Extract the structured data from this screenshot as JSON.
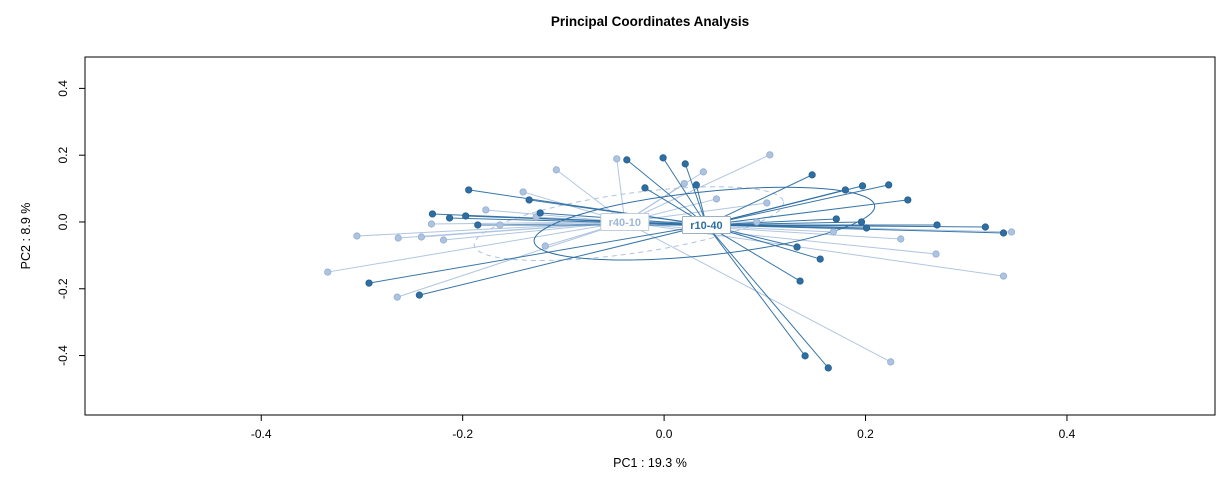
{
  "title": "Principal Coordinates Analysis",
  "chart_data": {
    "type": "scatter",
    "title": "Principal Coordinates Analysis",
    "xlabel": "PC1 :  19.3 %",
    "ylabel": "PC2 :  8.9 %",
    "xlim": [
      -0.575,
      0.547
    ],
    "ylim": [
      -0.578,
      0.494
    ],
    "xticks": [
      -0.4,
      -0.2,
      0.0,
      0.2,
      0.4
    ],
    "xtick_labels": [
      "-0.4",
      "-0.2",
      "0.0",
      "0.2",
      "0.4"
    ],
    "yticks": [
      -0.4,
      -0.2,
      0.0,
      0.2,
      0.4
    ],
    "ytick_labels": [
      "-0.4",
      "-0.2",
      "0.0",
      "0.2",
      "0.4"
    ],
    "grid": false,
    "legend": "none",
    "groups": [
      {
        "name": "r40-10",
        "color": "#adc3e0",
        "point_stroke": "#93afd1",
        "label_color": "#9db8d6",
        "label_box_border": "#b6c6da",
        "centroid": [
          -0.039,
          0.0
        ],
        "ellipse": {
          "cx": -0.035,
          "cy": -0.005,
          "rx": 0.155,
          "ry": 0.09,
          "angle": -8,
          "dashed": true
        },
        "points": [
          [
            -0.334,
            -0.15
          ],
          [
            -0.265,
            -0.225
          ],
          [
            -0.305,
            -0.042
          ],
          [
            -0.264,
            -0.048
          ],
          [
            -0.241,
            -0.045
          ],
          [
            -0.219,
            -0.054
          ],
          [
            -0.231,
            -0.006
          ],
          [
            -0.177,
            0.036
          ],
          [
            -0.163,
            -0.009
          ],
          [
            -0.127,
            0.015
          ],
          [
            -0.107,
            0.156
          ],
          [
            -0.047,
            0.189
          ],
          [
            -0.118,
            -0.072
          ],
          [
            0.039,
            0.15
          ],
          [
            0.105,
            0.201
          ],
          [
            0.052,
            0.069
          ],
          [
            0.102,
            0.057
          ],
          [
            0.092,
            0.0
          ],
          [
            0.235,
            -0.051
          ],
          [
            0.27,
            -0.096
          ],
          [
            0.337,
            -0.162
          ],
          [
            0.225,
            -0.419
          ],
          [
            -0.14,
            0.09
          ],
          [
            0.02,
            0.115
          ],
          [
            0.168,
            -0.03
          ],
          [
            0.345,
            -0.03
          ]
        ]
      },
      {
        "name": "r10-40",
        "color": "#2e6fa3",
        "point_stroke": "#275d8e",
        "label_color": "#2e6fa3",
        "label_box_border": "#8fa6bb",
        "centroid": [
          0.042,
          -0.009
        ],
        "ellipse": {
          "cx": 0.04,
          "cy": -0.005,
          "rx": 0.17,
          "ry": 0.095,
          "angle": -6,
          "dashed": false
        },
        "points": [
          [
            -0.194,
            0.096
          ],
          [
            -0.23,
            0.024
          ],
          [
            -0.213,
            0.012
          ],
          [
            -0.197,
            0.018
          ],
          [
            -0.185,
            -0.009
          ],
          [
            -0.134,
            0.066
          ],
          [
            -0.123,
            0.027
          ],
          [
            -0.293,
            -0.183
          ],
          [
            -0.243,
            -0.219
          ],
          [
            -0.037,
            0.186
          ],
          [
            -0.001,
            0.192
          ],
          [
            0.021,
            0.174
          ],
          [
            -0.019,
            0.102
          ],
          [
            0.032,
            0.111
          ],
          [
            0.147,
            0.141
          ],
          [
            0.18,
            0.096
          ],
          [
            0.197,
            0.108
          ],
          [
            0.223,
            0.111
          ],
          [
            0.242,
            0.066
          ],
          [
            0.319,
            -0.015
          ],
          [
            0.196,
            0.0
          ],
          [
            0.201,
            -0.018
          ],
          [
            0.171,
            0.009
          ],
          [
            0.132,
            -0.075
          ],
          [
            0.155,
            -0.111
          ],
          [
            0.135,
            -0.177
          ],
          [
            0.14,
            -0.401
          ],
          [
            0.163,
            -0.437
          ],
          [
            0.271,
            -0.009
          ],
          [
            0.337,
            -0.033
          ]
        ]
      }
    ]
  }
}
